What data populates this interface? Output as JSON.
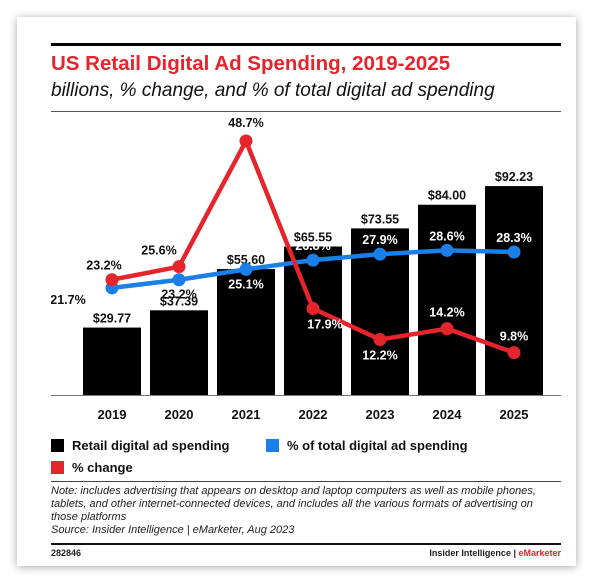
{
  "header": {
    "title": "US Retail Digital Ad Spending, 2019-2025",
    "subtitle": "billions, % change, and % of total digital ad spending"
  },
  "chart_data": {
    "type": "bar",
    "categories": [
      "2019",
      "2020",
      "2021",
      "2022",
      "2023",
      "2024",
      "2025"
    ],
    "series": [
      {
        "name": "Retail digital ad spending",
        "type": "bar",
        "color": "#000000",
        "values": [
          29.77,
          37.39,
          55.6,
          65.55,
          73.55,
          84.0,
          92.23
        ],
        "labels": [
          "$29.77",
          "$37.39",
          "$55.60",
          "$65.55",
          "$73.55",
          "$84.00",
          "$92.23"
        ]
      },
      {
        "name": "% of total digital ad spending",
        "type": "line",
        "color": "#1a7fe8",
        "values": [
          21.7,
          23.2,
          25.1,
          26.8,
          27.9,
          28.6,
          28.3
        ],
        "labels": [
          "21.7%",
          "23.2%",
          "25.1%",
          "26.8%",
          "27.9%",
          "28.6%",
          "28.3%"
        ]
      },
      {
        "name": "% change",
        "type": "line",
        "color": "#e5242b",
        "values": [
          23.2,
          25.6,
          48.7,
          17.9,
          12.2,
          14.2,
          9.8
        ],
        "labels": [
          "23.2%",
          "25.6%",
          "48.7%",
          "17.9%",
          "12.2%",
          "14.2%",
          "9.8%"
        ]
      }
    ]
  },
  "legend": {
    "items": [
      "Retail digital ad spending",
      "% of total digital ad spending",
      "% change"
    ]
  },
  "footer": {
    "note": "Note: includes advertising that appears on desktop and laptop computers as well as mobile phones, tablets, and other internet-connected devices, and includes all the various formats of advertising on those platforms",
    "source": "Source: Insider Intelligence | eMarketer, Aug 2023",
    "code": "282846",
    "brand_prefix": "Insider Intelligence | ",
    "brand_suffix": "eMarketer"
  }
}
